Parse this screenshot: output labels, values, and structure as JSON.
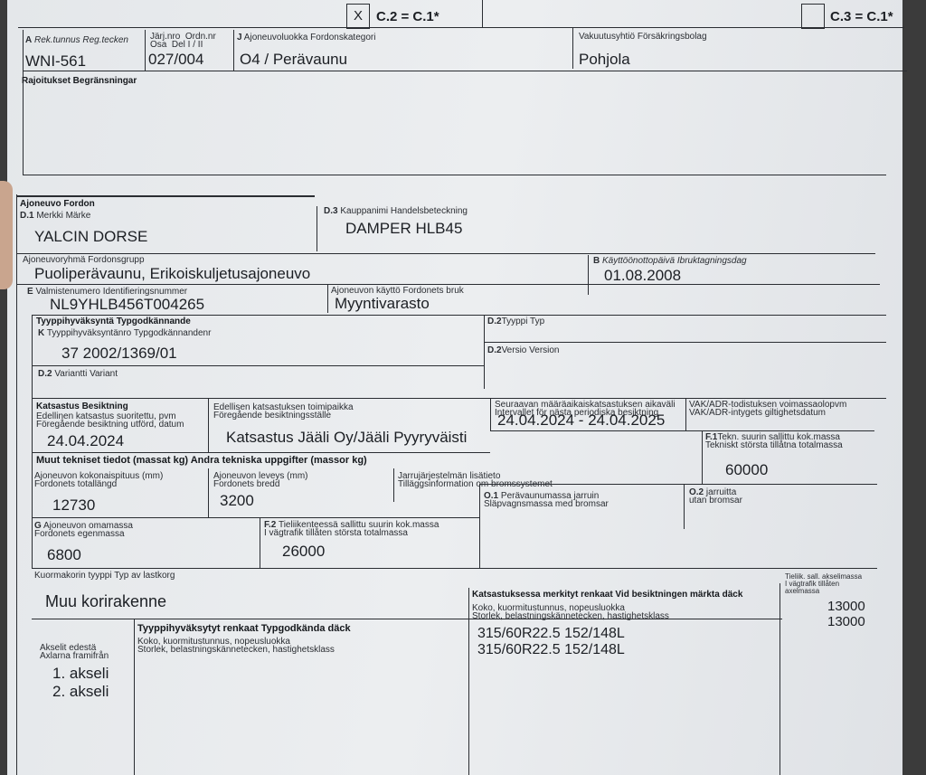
{
  "header": {
    "c2_checkbox": "X",
    "c2_label": "C.2 = C.1*",
    "c3_checkbox": "",
    "c3_label": "C.3 = C.1*"
  },
  "row_a": {
    "reg_label_code": "A",
    "reg_label": "Rek.tunnus  Reg.tecken",
    "reg_value": "WNI-561",
    "ordn_label": "Järj.nro  Ordn.nr\nOsa  Del I / II",
    "ordn_value": "027/004",
    "class_label_code": "J",
    "class_label": "Ajoneuvoluokka  Fordonskategori",
    "class_value": "O4 / Perävaunu",
    "insurer_label": "Vakuutusyhtiö  Försäkringsbolag",
    "insurer_value": "Pohjola"
  },
  "restrictions": {
    "label": "Rajoitukset  Begränsningar"
  },
  "vehicle": {
    "section": "Ajoneuvo  Fordon",
    "make_code": "D.1",
    "make_label": "Merkki  Märke",
    "make_value": "YALCIN DORSE",
    "trade_code": "D.3",
    "trade_label": "Kauppanimi  Handelsbeteckning",
    "trade_value": "DAMPER HLB45",
    "group_label": "Ajoneuvoryhmä  Fordonsgrupp",
    "group_value": "Puoliperävaunu, Erikoiskuljetusajoneuvo",
    "vin_code": "E",
    "vin_label": "Valmistenumero  Identifieringsnummer",
    "vin_value": "NL9YHLB456T004265",
    "use_label": "Ajoneuvon käyttö  Fordonets bruk",
    "use_value": "Myyntivarasto",
    "date_code": "B",
    "date_label": "Käyttöönottopäivä  Ibruktagningsdag",
    "date_value": "01.08.2008"
  },
  "type_approval": {
    "section": "Tyyppihyväksyntä  Typgodkännande",
    "number_code": "K",
    "number_label": "Tyyppihyväksyntänro  Typgodkännandenr",
    "number_value": "37 2002/1369/01",
    "type_code": "D.2",
    "type_label": "Tyyppi  Typ",
    "version_code": "D.2",
    "version_label": "Versio  Version",
    "variant_code": "D.2",
    "variant_label": "Variantti  Variant"
  },
  "inspection": {
    "section": "Katsastus  Besiktning",
    "last_label": "Edellinen katsastus suoritettu, pvm\nFöregående besiktning utförd, datum",
    "last_value": "24.04.2024",
    "place_label": "Edellisen katsastuksen toimipaikka\nFöregående besiktningsställe",
    "place_value": "Katsastus Jääli Oy/Jääli Pyyryväisti",
    "next_label": "Seuraavan määräaikaiskatsastuksen aikaväli\nIntervallet för nästa periodiska besiktning",
    "next_value": "24.04.2024 - 24.04.2025",
    "adr_label": "VAK/ADR-todistuksen voimassaolopvm\nVAK/ADR-intygets giltighetsdatum"
  },
  "technical": {
    "section": "Muut tekniset tiedot (massat kg)  Andra tekniska uppgifter (massor kg)",
    "length_label": "Ajoneuvon kokonaispituus (mm)\nFordonets totallängd",
    "length_value": "12730",
    "width_label": "Ajoneuvon leveys (mm)\nFordonets bredd",
    "width_value": "3200",
    "brake_label": "Jarrujärjestelmän lisätieto\nTilläggsinformation om bromssystemet",
    "f1_code": "F.1",
    "f1_label": "Tekn. suurin sallittu kok.massa\nTekniskt största tillåtna totalmassa",
    "f1_value": "60000",
    "g_code": "G",
    "g_label": "Ajoneuvon omamassa\nFordonets egenmassa",
    "g_value": "6800",
    "f2_code": "F.2",
    "f2_label": "Tieliikenteessä sallittu suurin kok.massa\nI vägtrafik tillåten största totalmassa",
    "f2_value": "26000",
    "o1_code": "O.1",
    "o1_label": "Perävaunumassa jarruin\nSläpvagnsmassa med bromsar",
    "o2_code": "O.2",
    "o2_label": "jarruitta\nutan bromsar"
  },
  "body": {
    "label": "Kuormakorin tyyppi  Typ av lastkorg",
    "value": "Muu korirakenne"
  },
  "tyres": {
    "axles_label": "Akselit edestä\nAxlarna framifrån",
    "axles": [
      "1. akseli",
      "2. akseli"
    ],
    "approved_title": "Tyyppihyväksytyt renkaat  Typgodkända däck",
    "approved_label": "Koko, kuormitustunnus, nopeusluokka\nStorlek, belastningskännetecken, hastighetsklass",
    "marked_title": "Katsastuksessa merkityt renkaat  Vid besiktningen märkta däck",
    "marked_label": "Koko, kuormitustunnus, nopeusluokka\nStorlek, belastningskännetecken, hastighetsklass",
    "marked_values": [
      "315/60R22.5 152/148L",
      "315/60R22.5 152/148L"
    ],
    "axle_mass_label": "Tieliik. sall. akselimassa\nI vägtrafik tillåten\naxelmassa",
    "axle_mass_values": [
      "13000",
      "13000"
    ]
  }
}
